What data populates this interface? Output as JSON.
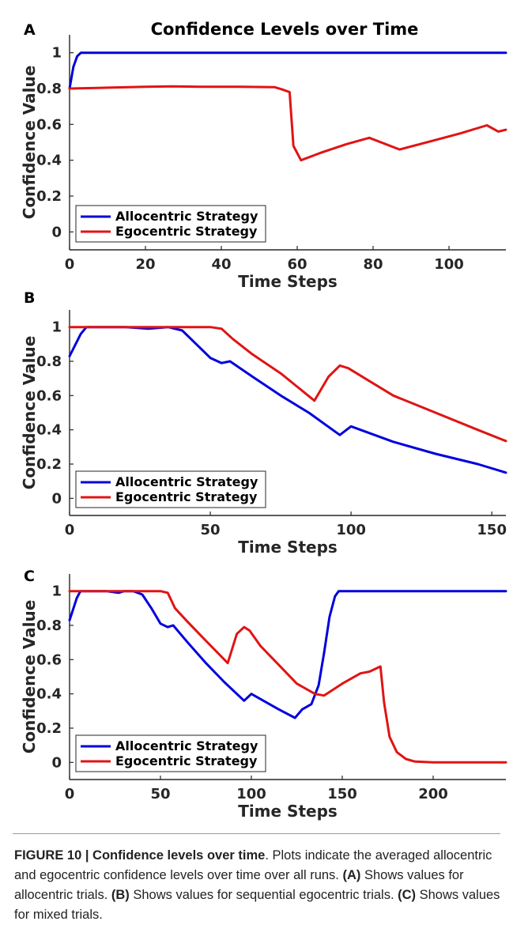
{
  "chart_data": [
    {
      "panel": "A",
      "type": "line",
      "title": "Confidence Levels over Time",
      "xlabel": "Time Steps",
      "ylabel": "Confidence Value",
      "xlim": [
        0,
        115
      ],
      "ylim": [
        -0.1,
        1.1
      ],
      "xticks": [
        0,
        20,
        40,
        60,
        80,
        100
      ],
      "yticks": [
        0,
        0.2,
        0.4,
        0.6,
        0.8,
        1
      ],
      "ytick_labels": [
        "0",
        "0.2",
        "0.4",
        "0.6",
        "0.8",
        "1"
      ],
      "legend": "bottom-left",
      "series": [
        {
          "name": "Allocentric Strategy",
          "color": "#0000dd",
          "x": [
            0,
            1,
            2,
            3,
            10,
            30,
            57,
            60,
            80,
            115
          ],
          "y": [
            0.8,
            0.92,
            0.98,
            1.0,
            1.0,
            1.0,
            1.0,
            1.0,
            1.0,
            1.0
          ]
        },
        {
          "name": "Egocentric Strategy",
          "color": "#e01414",
          "x": [
            0,
            10,
            20,
            27,
            35,
            45,
            54,
            56,
            58,
            59,
            61,
            66,
            73,
            79,
            87,
            95,
            103,
            110,
            113,
            115
          ],
          "y": [
            0.8,
            0.805,
            0.81,
            0.812,
            0.81,
            0.81,
            0.808,
            0.795,
            0.78,
            0.48,
            0.4,
            0.44,
            0.49,
            0.525,
            0.46,
            0.505,
            0.55,
            0.595,
            0.56,
            0.57
          ]
        }
      ]
    },
    {
      "panel": "B",
      "type": "line",
      "xlabel": "Time Steps",
      "ylabel": "Confidence Value",
      "xlim": [
        0,
        155
      ],
      "ylim": [
        -0.1,
        1.1
      ],
      "xticks": [
        0,
        50,
        100,
        150
      ],
      "yticks": [
        0,
        0.2,
        0.4,
        0.6,
        0.8,
        1
      ],
      "ytick_labels": [
        "0",
        "0.2",
        "0.4",
        "0.6",
        "0.8",
        "1"
      ],
      "legend": "bottom-left",
      "series": [
        {
          "name": "Allocentric Strategy",
          "color": "#0000dd",
          "x": [
            0,
            4,
            6,
            10,
            20,
            28,
            35,
            40,
            45,
            50,
            54,
            57,
            65,
            75,
            85,
            96,
            100,
            105,
            115,
            130,
            145,
            155
          ],
          "y": [
            0.83,
            0.96,
            1.0,
            1.0,
            1.0,
            0.99,
            1.0,
            0.98,
            0.9,
            0.82,
            0.79,
            0.8,
            0.71,
            0.6,
            0.5,
            0.37,
            0.42,
            0.39,
            0.33,
            0.26,
            0.2,
            0.15
          ]
        },
        {
          "name": "Egocentric Strategy",
          "color": "#e01414",
          "x": [
            0,
            20,
            40,
            50,
            54,
            58,
            65,
            75,
            87,
            92,
            96,
            99,
            105,
            115,
            130,
            145,
            155
          ],
          "y": [
            1.0,
            1.0,
            1.0,
            1.0,
            0.99,
            0.93,
            0.84,
            0.73,
            0.57,
            0.71,
            0.775,
            0.76,
            0.7,
            0.6,
            0.5,
            0.4,
            0.335
          ]
        }
      ]
    },
    {
      "panel": "C",
      "type": "line",
      "xlabel": "Time Steps",
      "ylabel": "Confidence Value",
      "xlim": [
        0,
        240
      ],
      "ylim": [
        -0.1,
        1.1
      ],
      "xticks": [
        0,
        50,
        100,
        150,
        200
      ],
      "yticks": [
        0,
        0.2,
        0.4,
        0.6,
        0.8,
        1
      ],
      "ytick_labels": [
        "0",
        "0.2",
        "0.4",
        "0.6",
        "0.8",
        "1"
      ],
      "legend": "bottom-left",
      "series": [
        {
          "name": "Allocentric Strategy",
          "color": "#0000dd",
          "x": [
            0,
            4,
            6,
            10,
            20,
            27,
            30,
            35,
            40,
            45,
            50,
            54,
            57,
            65,
            75,
            85,
            96,
            100,
            105,
            115,
            124,
            128,
            133,
            137,
            140,
            143,
            146,
            148,
            150,
            160,
            180,
            200,
            240
          ],
          "y": [
            0.83,
            0.96,
            1.0,
            1.0,
            1.0,
            0.99,
            1.0,
            1.0,
            0.98,
            0.9,
            0.81,
            0.79,
            0.8,
            0.7,
            0.58,
            0.47,
            0.36,
            0.4,
            0.37,
            0.31,
            0.26,
            0.31,
            0.34,
            0.45,
            0.64,
            0.85,
            0.97,
            1.0,
            1.0,
            1.0,
            1.0,
            1.0,
            1.0
          ]
        },
        {
          "name": "Egocentric Strategy",
          "color": "#e01414",
          "x": [
            0,
            20,
            40,
            50,
            54,
            58,
            65,
            75,
            87,
            92,
            96,
            99,
            105,
            115,
            125,
            135,
            140,
            150,
            160,
            165,
            171,
            173,
            176,
            180,
            185,
            190,
            200,
            240
          ],
          "y": [
            1.0,
            1.0,
            1.0,
            1.0,
            0.99,
            0.9,
            0.82,
            0.71,
            0.58,
            0.75,
            0.79,
            0.77,
            0.68,
            0.57,
            0.46,
            0.4,
            0.39,
            0.46,
            0.52,
            0.53,
            0.56,
            0.35,
            0.15,
            0.06,
            0.02,
            0.005,
            0.0,
            0.0
          ]
        }
      ]
    }
  ],
  "caption": {
    "label": "FIGURE 10 | Confidence levels over time",
    "text": ". Plots indicate the averaged allocentric and egocentric confidence levels over time over all runs. ",
    "part_a_label": "(A)",
    "part_a_text": " Shows values for allocentric trials. ",
    "part_b_label": "(B)",
    "part_b_text": " Shows values for sequential egocentric trials. ",
    "part_c_label": "(C)",
    "part_c_text": " Shows values for mixed trials."
  }
}
